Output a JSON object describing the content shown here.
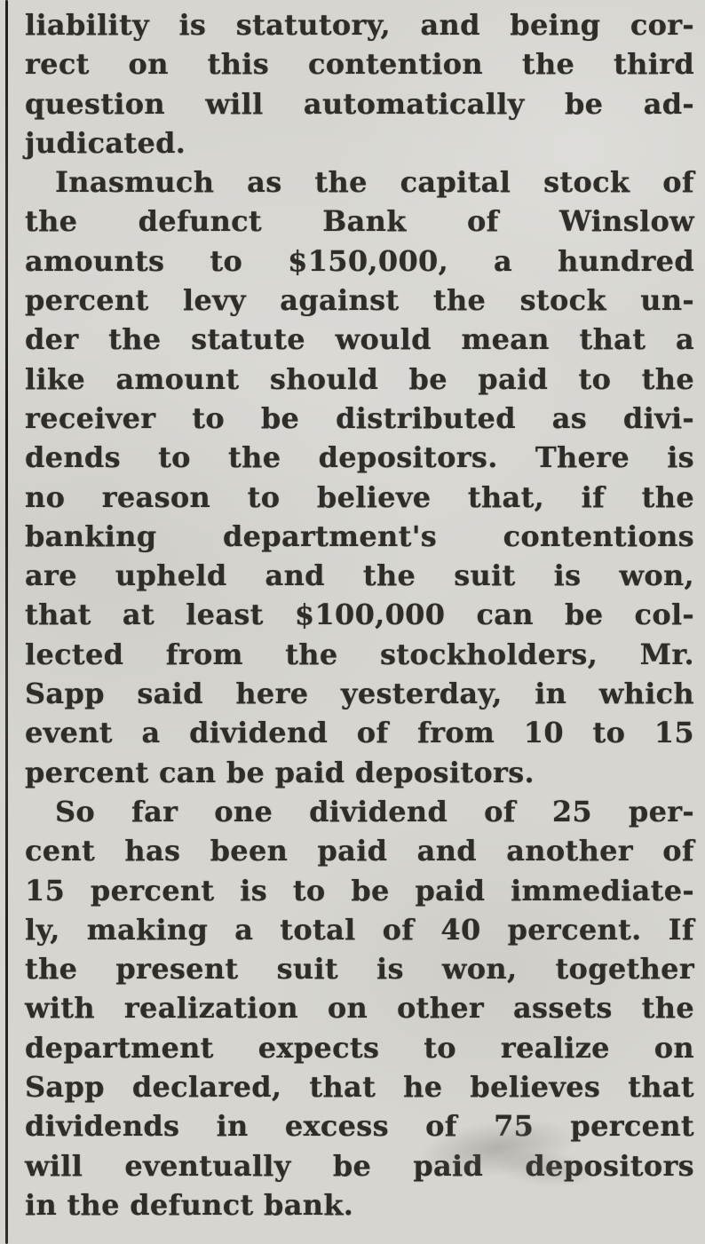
{
  "colors": {
    "paper": "#d6d5d0",
    "ink": "#2f2d29",
    "column_rule": "#2a2724"
  },
  "article": {
    "lines": [
      "liability is statutory, and being cor-",
      "rect on this contention the third",
      "question will automatically be ad-",
      "judicated.",
      "Inasmuch as the capital stock of",
      "the defunct Bank of Winslow",
      "amounts to $150,000, a hundred",
      "percent levy against the stock un-",
      "der the statute would mean that a",
      "like amount should be paid to the",
      "receiver to be distributed as divi-",
      "dends to the depositors. There is",
      "no reason to believe that, if the",
      "banking department's contentions",
      "are upheld and the suit is won,",
      "that at least $100,000 can be col-",
      "lected from the stockholders, Mr.",
      "Sapp said here yesterday, in which",
      "event a dividend of from 10 to 15",
      "percent can be paid depositors.",
      "So far one dividend of 25 per-",
      "cent has been paid and another of",
      "15 percent is to be paid immediate-",
      "ly, making a total of 40 percent. If",
      "the present suit is won, together",
      "with realization on other assets the",
      "department expects to realize on",
      "Sapp declared, that he believes that",
      "dividends in excess of 75 percent",
      "will eventually be paid depositors",
      "in the defunct bank."
    ]
  }
}
